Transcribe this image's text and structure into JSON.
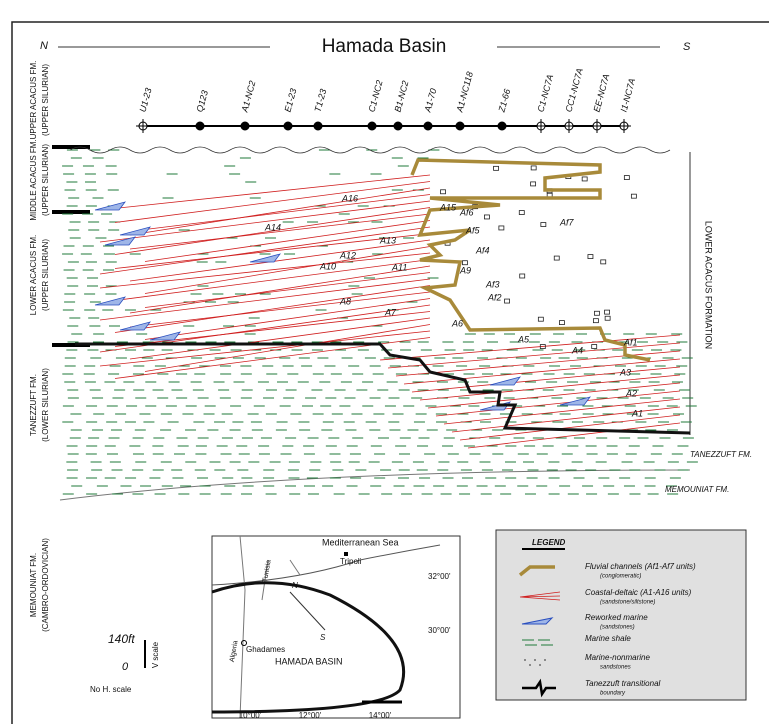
{
  "header": {
    "north": "N",
    "title": "Hamada Basin",
    "south": "S"
  },
  "wells": [
    "U1-23",
    "Q123",
    "A1-NC2",
    "E1-23",
    "T1-23",
    "C1-NC2",
    "B1-NC2",
    "A1-70",
    "A1-NC118",
    "Z1-66",
    "C1-NC7A",
    "CC1-NC7A",
    "EE-NC7A",
    "I1-NC7A"
  ],
  "formations_left": [
    {
      "name": "UPPER ACACUS FM.",
      "age": "(UPPER SILURIAN)"
    },
    {
      "name": "MIDDLE ACACUS FM.",
      "age": "(UPPER SILURIAN)"
    },
    {
      "name": "LOWER ACACUS FM.",
      "age": "(UPPER SILURIAN)"
    },
    {
      "name": "TANEZZUFT FM.",
      "age": "(LOWER SILURIAN)"
    },
    {
      "name": "MEMOUNIAT FM.",
      "age": "(CAMBRO-ORDOVICIAN)"
    }
  ],
  "formation_right": "LOWER ACACUS FORMATION",
  "coastal_units": [
    "A16",
    "A15",
    "A14",
    "A13",
    "A12",
    "A11",
    "A10",
    "A9",
    "A8",
    "A7",
    "A6",
    "A5",
    "A4",
    "A3",
    "A2",
    "A1"
  ],
  "fluvial_units": [
    "Af7",
    "Af6",
    "Af5",
    "Af4",
    "Af3",
    "Af2",
    "Af1"
  ],
  "base_labels": [
    "TANEZZUFT FM.",
    "MEMOUNIAT FM."
  ],
  "scale": {
    "value": "140ft",
    "zero": "0",
    "vertical": "V scale",
    "horizontal": "No H. scale"
  },
  "map": {
    "sea": "Mediterranean Sea",
    "city": "Tripoli",
    "lat_north": "32°00'",
    "lat_south": "30°00'",
    "tunisia": "Tunisia",
    "algeria": "Algeria",
    "town": "Ghadames",
    "basin": "HAMADA BASIN",
    "north": "N",
    "south": "S",
    "lon": [
      "10°00'",
      "12°00'",
      "14°00'"
    ]
  },
  "legend": {
    "title": "LEGEND",
    "items": [
      {
        "label": "Fluvial channels (Af1-Af7 units)",
        "sub": "(conglomeratic)"
      },
      {
        "label": "Coastal-deltaic (A1-A16 units)",
        "sub": "(sandstone/siltstone)"
      },
      {
        "label": "Reworked marine",
        "sub": "(sandstones)"
      },
      {
        "label": "Marine shale"
      },
      {
        "label": "Marine-nonmarine",
        "sub": "sandstones"
      },
      {
        "label": "Tanezzuft transitional",
        "sub": "boundary"
      }
    ]
  }
}
